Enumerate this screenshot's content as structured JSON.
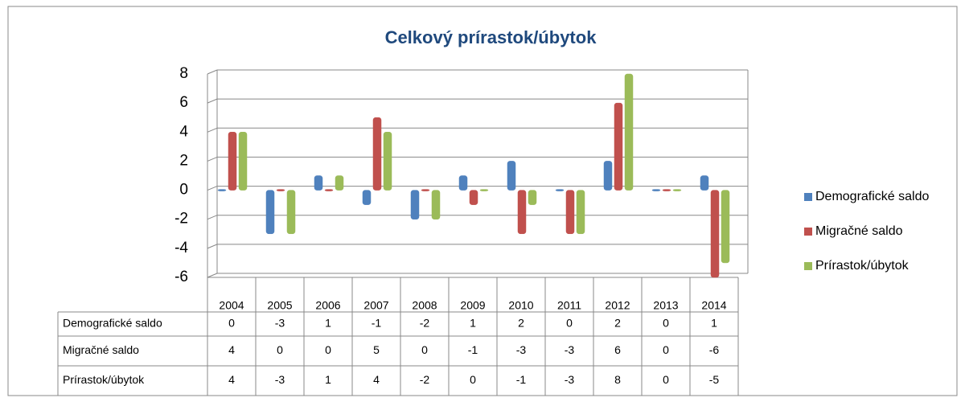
{
  "chart_data": {
    "type": "bar",
    "title": "Celkový prírastok/úbytok",
    "categories": [
      "2004",
      "2005",
      "2006",
      "2007",
      "2008",
      "2009",
      "2010",
      "2011",
      "2012",
      "2013",
      "2014"
    ],
    "series": [
      {
        "name": "Demografické saldo",
        "color": "#4f81bd",
        "values": [
          0,
          -3,
          1,
          -1,
          -2,
          1,
          2,
          0,
          2,
          0,
          1
        ]
      },
      {
        "name": "Migračné saldo",
        "color": "#c0504d",
        "values": [
          4,
          0,
          0,
          5,
          0,
          -1,
          -3,
          -3,
          6,
          0,
          -6
        ]
      },
      {
        "name": "Prírastok/úbytok",
        "color": "#9bbb59",
        "values": [
          4,
          -3,
          1,
          4,
          -2,
          0,
          -1,
          -3,
          8,
          0,
          -5
        ]
      }
    ],
    "ylim": [
      -6,
      8
    ],
    "yticks": [
      -6,
      -4,
      -2,
      0,
      2,
      4,
      6,
      8
    ],
    "grid": true,
    "legend": "right",
    "data_table": true
  }
}
